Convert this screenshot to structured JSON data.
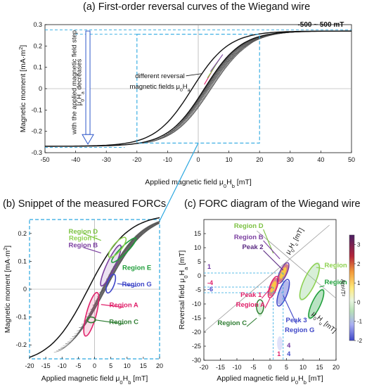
{
  "figure": {
    "title_a": "(a) First-order reversal curves of the Wiegand wire",
    "title_b": "(b) Snippet of the measured FORCs",
    "title_c": "(c) FORC diagram of the Wiegand wire"
  },
  "chart_data": [
    {
      "id": "a",
      "type": "line",
      "title": "(a) First-order reversal curves of the Wiegand wire",
      "xlabel": "Applied magnetic field μ0Hb [mT]",
      "ylabel": "Magnetic moment [mA·m²]",
      "xlim": [
        -50,
        50
      ],
      "ylim": [
        -0.3,
        0.3
      ],
      "xticks": [
        -50,
        -40,
        -30,
        -20,
        -10,
        0,
        10,
        20,
        30,
        40,
        50
      ],
      "yticks": [
        -0.3,
        -0.2,
        -0.1,
        0,
        0.1,
        0.2,
        0.3
      ],
      "annotations": {
        "range": "-500 ~ 500 mT",
        "arrow_text_1": "μ0Ha decreases",
        "arrow_text_2": "with the applied magnetic field step",
        "reversal_text_1": "different reversal",
        "reversal_text_2": "magnetic fields μ0Ha"
      },
      "colors": {
        "curves": "#111111",
        "guide": "#2aa7e0",
        "arrow": "#2d57c8"
      }
    },
    {
      "id": "b",
      "type": "line",
      "title": "(b) Snippet of the measured FORCs",
      "xlabel": "Applied magnetic field μ0Hb [mT]",
      "ylabel": "Magnetic moment [mA·m²]",
      "xlim": [
        -20,
        20
      ],
      "ylim": [
        -0.25,
        0.25
      ],
      "xticks": [
        -20,
        -15,
        -10,
        -5,
        0,
        5,
        10,
        15,
        20
      ],
      "yticks": [
        -0.2,
        -0.1,
        0,
        0.1,
        0.2
      ],
      "regions": [
        {
          "name": "Region D",
          "color": "#7cc242"
        },
        {
          "name": "Region F",
          "color": "#8dd14f"
        },
        {
          "name": "Region B",
          "color": "#7b3fa0"
        },
        {
          "name": "Region E",
          "color": "#1f9e3a"
        },
        {
          "name": "Region G",
          "color": "#3f47c8"
        },
        {
          "name": "Region A",
          "color": "#e0206a"
        },
        {
          "name": "Region C",
          "color": "#2e7d32"
        }
      ]
    },
    {
      "id": "c",
      "type": "heatmap",
      "title": "(c) FORC diagram of the Wiegand wire",
      "xlabel": "Applied magnetic field μ0Hb [mT]",
      "ylabel": "Reversal field μ0Ha [mT]",
      "xlim": [
        -20,
        20
      ],
      "ylim": [
        -30,
        20
      ],
      "xticks": [
        -20,
        -15,
        -10,
        -5,
        0,
        5,
        10,
        15,
        20
      ],
      "yticks": [
        -30,
        -25,
        -20,
        -15,
        -10,
        -5,
        0,
        5,
        10,
        15
      ],
      "colorbar": {
        "label": "Am²/T²",
        "ticks": [
          3,
          2,
          1,
          0,
          -1,
          -2
        ],
        "range": [
          -2,
          3.5
        ]
      },
      "axis_labels_diag": {
        "hc": "μ0Hc [mT]",
        "hu": "μ0Hu [mT]"
      },
      "regions": [
        {
          "name": "Region D",
          "color": "#7cc242"
        },
        {
          "name": "Region B",
          "color": "#7b3fa0"
        },
        {
          "name": "Peak 2",
          "color": "#5a2a82"
        },
        {
          "name": "Region F",
          "color": "#8dd14f"
        },
        {
          "name": "Region E",
          "color": "#1f9e3a"
        },
        {
          "name": "Peak 1",
          "color": "#e0206a"
        },
        {
          "name": "Region A",
          "color": "#e0206a"
        },
        {
          "name": "Region C",
          "color": "#2e7d32"
        },
        {
          "name": "Peak 3",
          "color": "#3f47c8"
        },
        {
          "name": "Region G",
          "color": "#3f47c8"
        }
      ],
      "guide_values": {
        "ha": [
          1,
          -4,
          -6
        ],
        "hb": [
          1,
          4,
          4
        ]
      },
      "peaks": [
        {
          "name": "Peak 1",
          "hb": 1,
          "ha": -4
        },
        {
          "name": "Peak 2",
          "hb": 4,
          "ha": 1
        },
        {
          "name": "Peak 3",
          "hb": 4,
          "ha": -6
        }
      ]
    }
  ]
}
